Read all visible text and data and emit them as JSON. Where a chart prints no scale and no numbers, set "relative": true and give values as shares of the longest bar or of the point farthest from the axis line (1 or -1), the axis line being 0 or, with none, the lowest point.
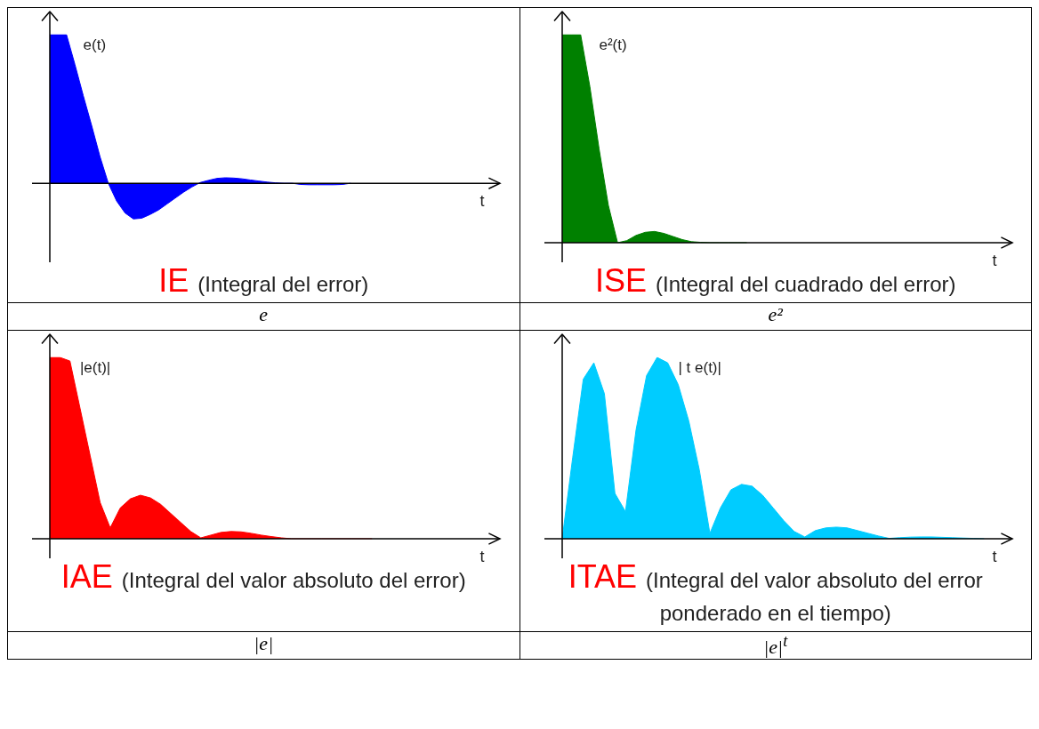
{
  "chart_data": [
    {
      "type": "area",
      "title": "IE",
      "subtitle": "(Integral del error)",
      "xlabel": "t",
      "relative": true,
      "legend": false,
      "tick_labels": false,
      "annotations": [
        "e"
      ],
      "categories": [
        null,
        null,
        null,
        null,
        null,
        null,
        null,
        null,
        null,
        null,
        null,
        null,
        null,
        null,
        null,
        null,
        null,
        null,
        null,
        null,
        null,
        null,
        null,
        null,
        null,
        null,
        null,
        null,
        null,
        null,
        null,
        null,
        null,
        null,
        null,
        null,
        null,
        null,
        null,
        null,
        null,
        null,
        null,
        null,
        null,
        null,
        null,
        null,
        null,
        null,
        null,
        null,
        null,
        null
      ],
      "series": [
        {
          "name": "e(t)",
          "color": "#0000ff",
          "values": [
            1,
            1,
            1,
            0.8,
            0.59,
            0.39,
            0.18,
            0,
            -0.12,
            -0.2,
            -0.24,
            -0.235,
            -0.21,
            -0.18,
            -0.14,
            -0.1,
            -0.06,
            -0.025,
            0.005,
            0.02,
            0.033,
            0.037,
            0.035,
            0.03,
            0.022,
            0.015,
            0.008,
            0.003,
            0,
            0,
            -0.008,
            -0.01,
            -0.01,
            -0.01,
            -0.01,
            -0.008,
            0,
            null,
            null,
            null,
            null,
            null,
            null,
            null,
            null,
            null,
            null,
            null,
            null,
            null,
            null,
            null,
            null,
            null
          ]
        }
      ]
    },
    {
      "type": "area",
      "title": "ISE",
      "subtitle": "(Integral del cuadrado del error)",
      "xlabel": "t",
      "relative": true,
      "legend": false,
      "tick_labels": false,
      "annotations": [
        "e²"
      ],
      "categories": [
        null,
        null,
        null,
        null,
        null,
        null,
        null,
        null,
        null,
        null,
        null,
        null,
        null,
        null,
        null,
        null,
        null,
        null,
        null,
        null,
        null,
        null,
        null,
        null,
        null,
        null,
        null,
        null,
        null,
        null,
        null,
        null,
        null,
        null,
        null,
        null,
        null,
        null,
        null,
        null,
        null,
        null,
        null,
        null,
        null,
        null,
        null,
        null,
        null
      ],
      "series": [
        {
          "name": "e²(t)",
          "color": "#008000",
          "values": [
            1,
            1,
            1,
            0.75,
            0.45,
            0.18,
            0,
            0.01,
            0.035,
            0.05,
            0.054,
            0.045,
            0.03,
            0.015,
            0.005,
            0.002,
            0,
            0,
            0,
            0,
            0,
            null,
            null,
            null,
            null,
            null,
            null,
            null,
            null,
            null,
            null,
            null,
            null,
            null,
            null,
            null,
            null,
            null,
            null,
            null,
            null,
            null,
            null,
            null,
            null,
            null,
            null,
            null,
            null
          ]
        }
      ]
    },
    {
      "type": "area",
      "title": "IAE",
      "subtitle": "(Integral del valor absoluto del error)",
      "xlabel": "t",
      "relative": true,
      "legend": false,
      "tick_labels": false,
      "annotations": [
        "|e|"
      ],
      "categories": [
        null,
        null,
        null,
        null,
        null,
        null,
        null,
        null,
        null,
        null,
        null,
        null,
        null,
        null,
        null,
        null,
        null,
        null,
        null,
        null,
        null,
        null,
        null,
        null,
        null,
        null,
        null,
        null,
        null,
        null,
        null,
        null,
        null,
        null,
        null,
        null,
        null,
        null,
        null,
        null,
        null,
        null,
        null,
        null,
        null
      ],
      "series": [
        {
          "name": "|e(t)|",
          "color": "#ff0000",
          "values": [
            1,
            1,
            0.98,
            0.72,
            0.46,
            0.2,
            0.06,
            0.17,
            0.22,
            0.24,
            0.225,
            0.19,
            0.14,
            0.09,
            0.04,
            0.005,
            0.02,
            0.035,
            0.04,
            0.038,
            0.03,
            0.02,
            0.012,
            0.005,
            0,
            0,
            0,
            0,
            0,
            0,
            0,
            0,
            0,
            null,
            null,
            null,
            null,
            null,
            null,
            null,
            null,
            null,
            null,
            null,
            null
          ]
        }
      ]
    },
    {
      "type": "area",
      "title": "ITAE",
      "subtitle": "(Integral del valor absoluto del error ponderado en el tiempo)",
      "xlabel": "t",
      "relative": true,
      "legend": false,
      "tick_labels": false,
      "annotations": [
        "|e|$^{t}$"
      ],
      "categories": [
        null,
        null,
        null,
        null,
        null,
        null,
        null,
        null,
        null,
        null,
        null,
        null,
        null,
        null,
        null,
        null,
        null,
        null,
        null,
        null,
        null,
        null,
        null,
        null,
        null,
        null,
        null,
        null,
        null,
        null,
        null,
        null,
        null,
        null,
        null,
        null,
        null,
        null,
        null,
        null,
        null,
        null,
        null
      ],
      "series": [
        {
          "name": "| t e(t)|",
          "color": "#00ccff",
          "values": [
            0,
            0.45,
            0.88,
            0.97,
            0.8,
            0.25,
            0.15,
            0.6,
            0.9,
            1,
            0.97,
            0.85,
            0.65,
            0.38,
            0.03,
            0.17,
            0.27,
            0.3,
            0.29,
            0.24,
            0.17,
            0.1,
            0.04,
            0.01,
            0.045,
            0.06,
            0.064,
            0.06,
            0.045,
            0.03,
            0.015,
            0.002,
            0.006,
            0.009,
            0.01,
            0.01,
            0.008,
            0.006,
            0.004,
            0.002,
            0,
            null,
            null
          ]
        }
      ]
    }
  ]
}
